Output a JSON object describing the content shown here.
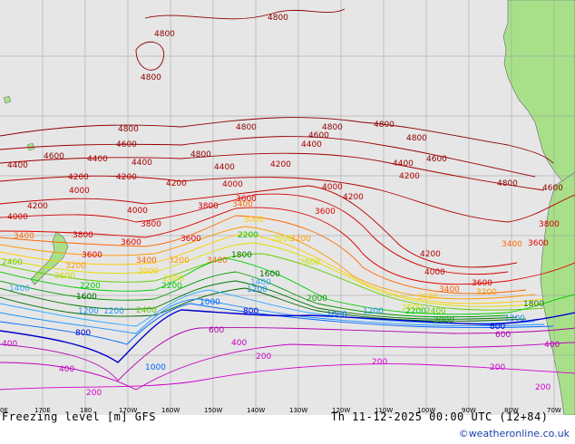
{
  "map": {
    "title_left": "Freezing level [m] GFS",
    "title_right": "Th 11-12-2025 00:00 UTC (12+84)",
    "credit": "©weatheronline.co.uk",
    "longitude_ticks": [
      "0E",
      "170E",
      "180",
      "170W",
      "160W",
      "150W",
      "140W",
      "130W",
      "120W",
      "110W",
      "100W",
      "90W",
      "80W",
      "70W"
    ],
    "colors": {
      "ocean": "#e6e6e6",
      "land": "#a8e08a",
      "grid": "#9a9a9a",
      "credit": "#1a3fa8"
    },
    "contour_labels": [
      {
        "text": "4800",
        "color": "#8b0000"
      },
      {
        "text": "4600",
        "color": "#8b0000"
      },
      {
        "text": "4400",
        "color": "#a00000"
      },
      {
        "text": "4200",
        "color": "#b00000"
      },
      {
        "text": "4000",
        "color": "#c00000"
      },
      {
        "text": "3800",
        "color": "#d00000"
      },
      {
        "text": "3600",
        "color": "#e00000"
      },
      {
        "text": "3400",
        "color": "#ff6600"
      },
      {
        "text": "3200",
        "color": "#ff9900"
      },
      {
        "text": "3000",
        "color": "#ffcc00"
      },
      {
        "text": "2800",
        "color": "#e0e000"
      },
      {
        "text": "2600",
        "color": "#c8e000"
      },
      {
        "text": "2400",
        "color": "#66cc00"
      },
      {
        "text": "2200",
        "color": "#00cc00"
      },
      {
        "text": "2000",
        "color": "#009900"
      },
      {
        "text": "1800",
        "color": "#007700"
      },
      {
        "text": "1600",
        "color": "#006600"
      },
      {
        "text": "1400",
        "color": "#33aaff"
      },
      {
        "text": "1200",
        "color": "#1e90ff"
      },
      {
        "text": "1000",
        "color": "#0066ff"
      },
      {
        "text": "800",
        "color": "#0000cc"
      },
      {
        "text": "600",
        "color": "#b000b0"
      },
      {
        "text": "400",
        "color": "#c000c0"
      },
      {
        "text": "200",
        "color": "#d000d0"
      }
    ]
  }
}
